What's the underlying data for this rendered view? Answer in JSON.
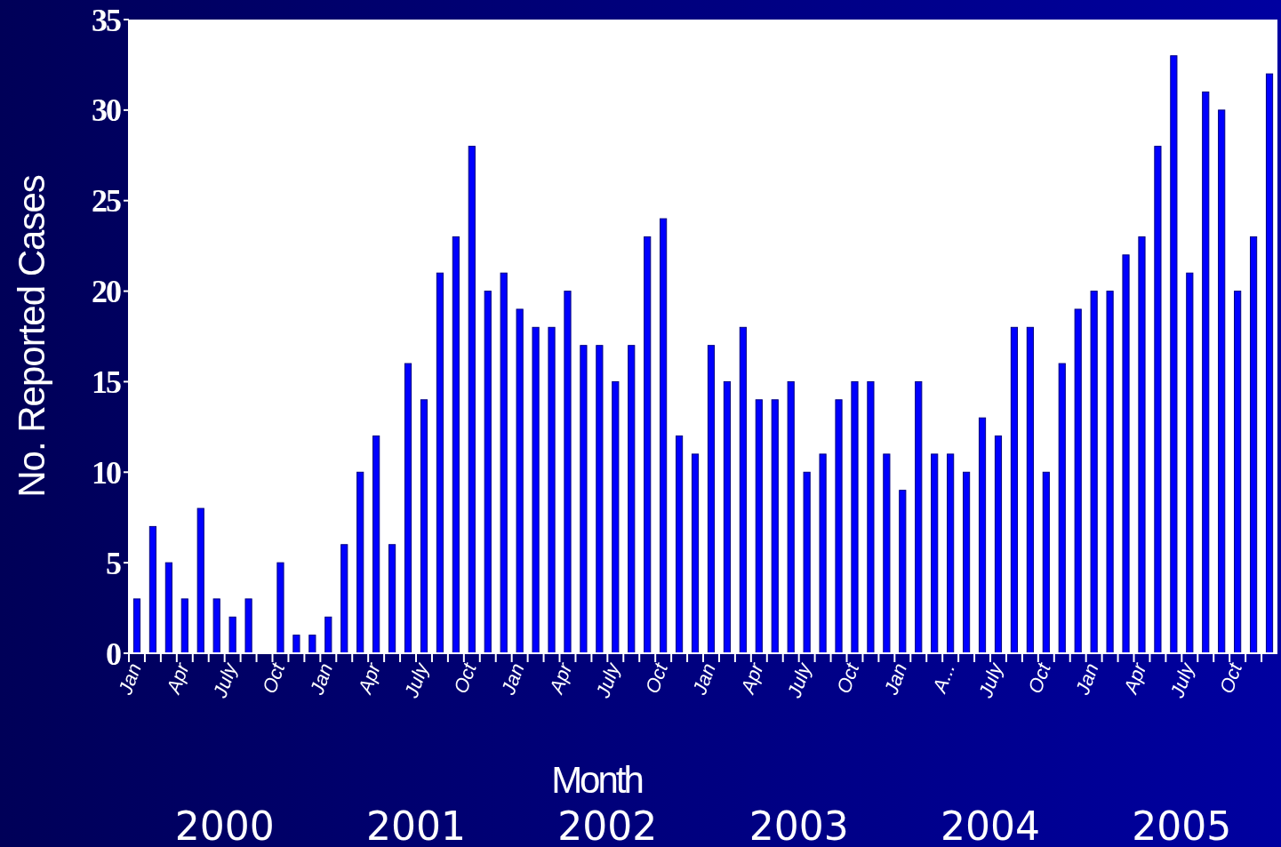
{
  "chart_data": {
    "type": "bar",
    "xlabel": "Month",
    "ylabel": "No. Reported Cases",
    "categories": [
      "Jan",
      null,
      null,
      "Apr",
      null,
      null,
      "July",
      null,
      null,
      "Oct",
      null,
      null,
      "Jan",
      null,
      null,
      "Apr",
      null,
      null,
      "July",
      null,
      null,
      "Oct",
      null,
      null,
      "Jan",
      null,
      null,
      "Apr",
      null,
      null,
      "July",
      null,
      null,
      "Oct",
      null,
      null,
      "Jan",
      null,
      null,
      "Apr",
      null,
      null,
      "July",
      null,
      null,
      "Oct",
      null,
      null,
      "Jan",
      null,
      null,
      "A...",
      null,
      null,
      "July",
      null,
      null,
      "Oct",
      null,
      null,
      "Jan",
      null,
      null,
      "Apr",
      null,
      null,
      "July",
      null,
      null,
      "Oct",
      null,
      null
    ],
    "values": [
      3,
      7,
      5,
      3,
      8,
      3,
      2,
      3,
      0,
      5,
      1,
      1,
      2,
      6,
      10,
      12,
      6,
      16,
      14,
      21,
      23,
      28,
      20,
      21,
      19,
      18,
      18,
      20,
      17,
      17,
      15,
      17,
      23,
      24,
      12,
      11,
      17,
      15,
      18,
      14,
      14,
      15,
      10,
      11,
      14,
      15,
      15,
      11,
      9,
      15,
      11,
      11,
      10,
      13,
      12,
      18,
      18,
      10,
      16,
      19,
      20,
      20,
      22,
      23,
      28,
      33,
      21,
      31,
      30,
      20,
      23,
      32
    ],
    "color": "#0000ff",
    "ylim": [
      0,
      35
    ],
    "yticks": [
      0,
      5,
      10,
      15,
      20,
      25,
      30,
      35
    ],
    "grid": false,
    "annotations": [
      "2000",
      "2001",
      "2002",
      "2003",
      "2004",
      "2005"
    ]
  }
}
